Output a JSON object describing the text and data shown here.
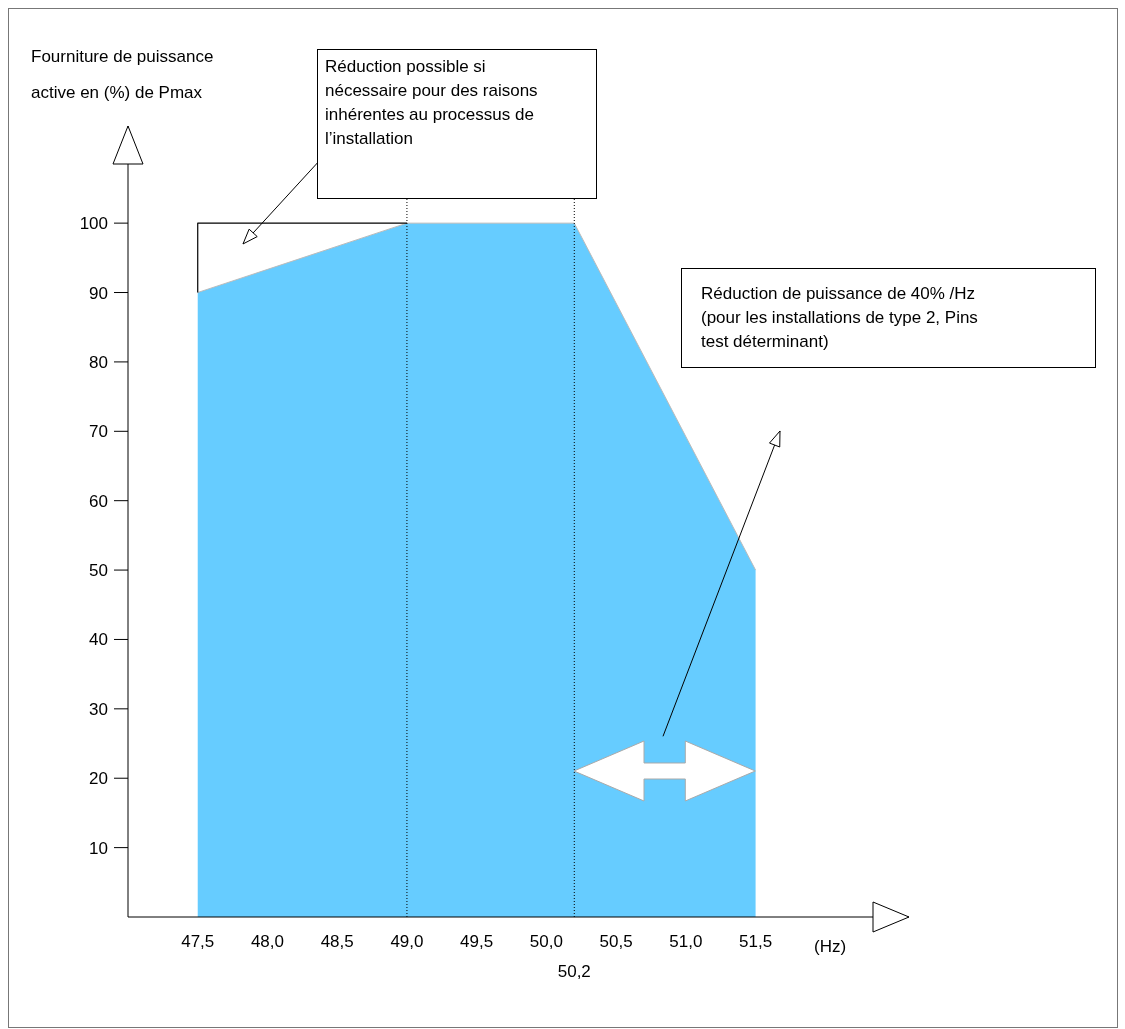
{
  "chart_data": {
    "type": "area",
    "xlabel": "(Hz)",
    "ylabel": "Fourniture de puissance active en (%) de Pmax",
    "xlim": [
      47,
      52.6
    ],
    "ylim": [
      0,
      114
    ],
    "xticks": [
      {
        "value": 47.5,
        "label": "47,5"
      },
      {
        "value": 48,
        "label": "48,0"
      },
      {
        "value": 48.5,
        "label": "48,5"
      },
      {
        "value": 49,
        "label": "49,0"
      },
      {
        "value": 49.5,
        "label": "49,5"
      },
      {
        "value": 50,
        "label": "50,0"
      },
      {
        "value": 50.5,
        "label": "50,5"
      },
      {
        "value": 51,
        "label": "51,0"
      },
      {
        "value": 51.5,
        "label": "51,5"
      }
    ],
    "yticks": [
      10,
      20,
      30,
      40,
      50,
      60,
      70,
      80,
      90,
      100
    ],
    "legend": false,
    "series": [
      {
        "color": "#66ccff",
        "x": [
          47.5,
          49,
          50.2,
          51.5
        ],
        "values": [
          90,
          100,
          100,
          50
        ]
      },
      {
        "type": "line",
        "color": "#000000",
        "x": [
          47.5,
          47.5,
          49
        ],
        "values": [
          90,
          100,
          100
        ]
      }
    ],
    "ref_lines": [
      {
        "axis": "x",
        "value": 49,
        "line_style": "dotted"
      },
      {
        "axis": "x",
        "value": 50.2,
        "label": "50,2",
        "line_style": "dotted"
      }
    ],
    "annotations": [
      "Réduction possible si nécessaire pour des raisons inhérentes au processus de l’installation",
      "Réduction de puissance de 40% /Hz (pour les installations de type 2, Pins test déterminant)"
    ]
  }
}
